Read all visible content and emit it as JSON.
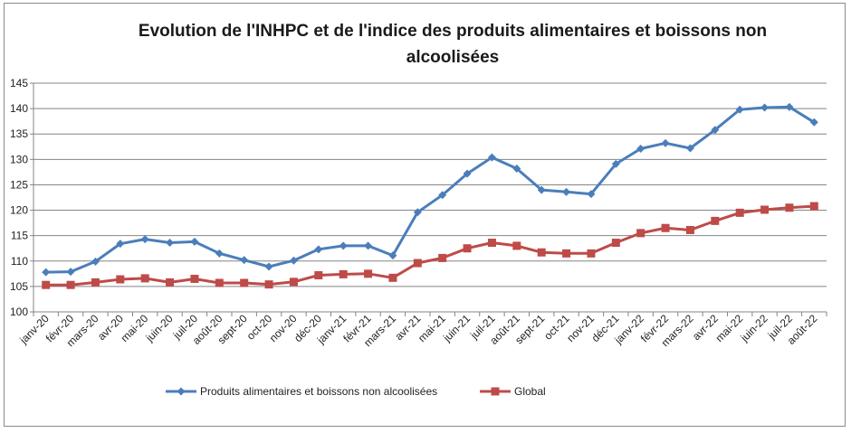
{
  "chart_data": {
    "type": "line",
    "title": "Evolution de l'INHPC et de l'indice des produits alimentaires et boissons non alcoolisées",
    "xlabel": "",
    "ylabel": "",
    "ylim": [
      100,
      145
    ],
    "yticks": [
      100,
      105,
      110,
      115,
      120,
      125,
      130,
      135,
      140,
      145
    ],
    "grid": true,
    "legend_position": "bottom",
    "categories": [
      "janv-20",
      "févr-20",
      "mars-20",
      "avr-20",
      "mai-20",
      "juin-20",
      "juil-20",
      "août-20",
      "sept-20",
      "oct-20",
      "nov-20",
      "déc-20",
      "janv-21",
      "févr-21",
      "mars-21",
      "avr-21",
      "mai-21",
      "juin-21",
      "juil-21",
      "août-21",
      "sept-21",
      "oct-21",
      "nov-21",
      "déc-21",
      "janv-22",
      "févr-22",
      "mars-22",
      "avr-22",
      "mai-22",
      "juin-22",
      "juil-22",
      "août-22"
    ],
    "series": [
      {
        "name": "Produits alimentaires et boissons non alcoolisées",
        "color": "#4a7ebb",
        "marker": "diamond",
        "values": [
          107.8,
          107.9,
          109.9,
          113.4,
          114.3,
          113.6,
          113.8,
          111.5,
          110.2,
          108.9,
          110.1,
          112.3,
          113.0,
          113.0,
          111.1,
          119.6,
          123.0,
          127.2,
          130.4,
          128.2,
          124.0,
          123.6,
          123.2,
          129.1,
          132.1,
          133.2,
          132.2,
          135.8,
          139.8,
          140.2,
          140.3,
          137.3
        ]
      },
      {
        "name": "Global",
        "color": "#be4b48",
        "marker": "square",
        "values": [
          105.3,
          105.3,
          105.8,
          106.4,
          106.6,
          105.8,
          106.5,
          105.7,
          105.7,
          105.4,
          105.9,
          107.2,
          107.4,
          107.5,
          106.7,
          109.6,
          110.6,
          112.5,
          113.6,
          113.0,
          111.7,
          111.5,
          111.5,
          113.6,
          115.5,
          116.5,
          116.1,
          117.9,
          119.5,
          120.1,
          120.5,
          120.8
        ]
      }
    ]
  }
}
